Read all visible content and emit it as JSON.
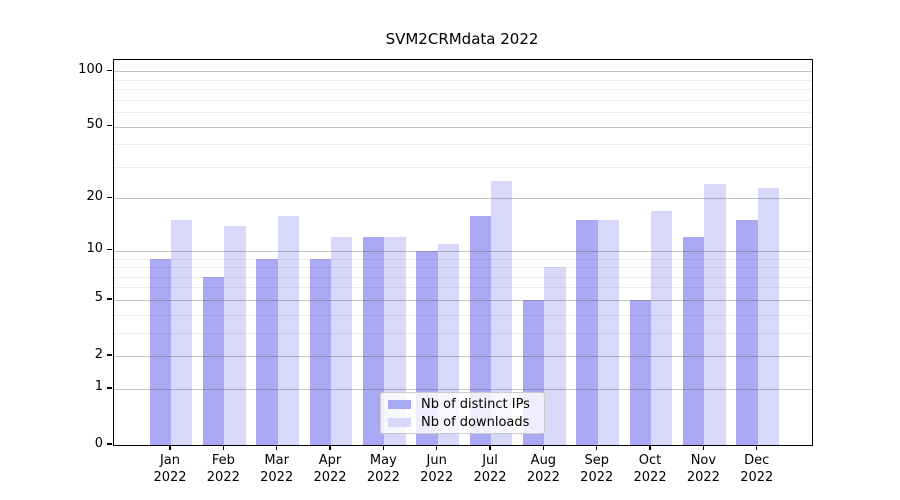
{
  "title": "SVM2CRMdata 2022",
  "legend": {
    "items": [
      {
        "label": "Nb of distinct IPs",
        "color": "#a9a9f4"
      },
      {
        "label": "Nb of downloads",
        "color": "#d8d8f8"
      }
    ]
  },
  "y_axis": {
    "tick_labels": [
      "100",
      "50",
      "20",
      "10",
      "5",
      "2",
      "1",
      "0"
    ]
  },
  "x_axis": {
    "months": [
      "Jan",
      "Feb",
      "Mar",
      "Apr",
      "May",
      "Jun",
      "Jul",
      "Aug",
      "Sep",
      "Oct",
      "Nov",
      "Dec"
    ],
    "year": "2022"
  },
  "chart_data": {
    "type": "bar",
    "title": "SVM2CRMdata 2022",
    "categories": [
      "Jan 2022",
      "Feb 2022",
      "Mar 2022",
      "Apr 2022",
      "May 2022",
      "Jun 2022",
      "Jul 2022",
      "Aug 2022",
      "Sep 2022",
      "Oct 2022",
      "Nov 2022",
      "Dec 2022"
    ],
    "series": [
      {
        "name": "Nb of distinct IPs",
        "color": "#a9a9f4",
        "values": [
          9,
          7,
          9,
          9,
          12,
          10,
          16,
          5,
          15,
          5,
          12,
          15
        ]
      },
      {
        "name": "Nb of downloads",
        "color": "#d8d8f8",
        "values": [
          15,
          14,
          16,
          12,
          12,
          11,
          25,
          8,
          15,
          17,
          24,
          23
        ]
      }
    ],
    "xlabel": "",
    "ylabel": "",
    "yscale": "log10(value+1)",
    "ylim": [
      0,
      115
    ],
    "y_major_ticks": [
      100,
      50,
      20,
      10,
      5,
      2,
      1,
      0
    ],
    "y_minor_gridlines": [
      3,
      4,
      6,
      7,
      8,
      9,
      30,
      40,
      60,
      70,
      80,
      90
    ],
    "grid": "on",
    "legend_position": "lower center inside plot"
  }
}
